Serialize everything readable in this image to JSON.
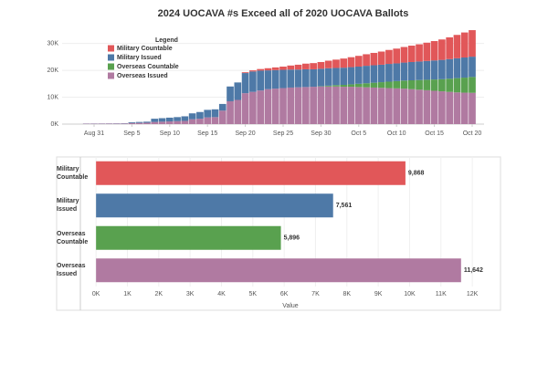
{
  "chart_data": [
    {
      "type": "bar",
      "stacked": true,
      "title": "2024 UOCAVA #s Exceed all of 2020 UOCAVA Ballots",
      "categories": [
        null,
        "Aug 31",
        null,
        null,
        null,
        null,
        "Sep 5",
        null,
        null,
        null,
        null,
        "Sep 10",
        null,
        null,
        null,
        null,
        "Sep 15",
        null,
        null,
        null,
        null,
        "Sep 20",
        null,
        null,
        null,
        null,
        "Sep 25",
        null,
        null,
        null,
        null,
        "Sep 30",
        null,
        null,
        null,
        null,
        "Oct 5",
        null,
        null,
        null,
        null,
        "Oct 10",
        null,
        null,
        null,
        null,
        "Oct 15",
        null,
        null,
        null,
        null,
        "Oct 20"
      ],
      "series": [
        {
          "name": "Military Countable",
          "color": "#e15759",
          "values": [
            0,
            0,
            0,
            0,
            0,
            0,
            0,
            0,
            0,
            0,
            0,
            0,
            0,
            0,
            0,
            0,
            0,
            0,
            0,
            0,
            0,
            300,
            400,
            600,
            800,
            1000,
            1200,
            1500,
            1800,
            2100,
            2300,
            2500,
            2800,
            3100,
            3400,
            3700,
            4000,
            4300,
            4600,
            4900,
            5200,
            5500,
            5800,
            6100,
            6400,
            6800,
            7200,
            7600,
            8100,
            8700,
            9300,
            9868
          ]
        },
        {
          "name": "Military Issued",
          "color": "#4e79a7",
          "values": [
            50,
            60,
            60,
            70,
            80,
            100,
            300,
            350,
            400,
            1200,
            1300,
            1400,
            1500,
            1700,
            2200,
            2500,
            2800,
            2900,
            2500,
            5500,
            6500,
            7500,
            7600,
            7400,
            7000,
            6900,
            6800,
            6700,
            6600,
            6600,
            6500,
            6500,
            6500,
            6400,
            6400,
            6400,
            6400,
            6500,
            6500,
            6500,
            6600,
            6600,
            6700,
            6800,
            6900,
            7000,
            7100,
            7200,
            7300,
            7400,
            7500,
            7561
          ]
        },
        {
          "name": "Overseas Countable",
          "color": "#59a14f",
          "values": [
            0,
            0,
            0,
            0,
            0,
            0,
            0,
            0,
            0,
            0,
            0,
            0,
            0,
            0,
            0,
            0,
            0,
            0,
            0,
            0,
            0,
            0,
            0,
            0,
            0,
            0,
            0,
            0,
            0,
            0,
            0,
            100,
            300,
            500,
            700,
            900,
            1200,
            1500,
            1800,
            2100,
            2400,
            2700,
            3000,
            3300,
            3600,
            3900,
            4200,
            4500,
            4900,
            5300,
            5600,
            5896
          ]
        },
        {
          "name": "Overseas Issued",
          "color": "#b07aa1",
          "values": [
            150,
            150,
            160,
            170,
            180,
            200,
            400,
            450,
            500,
            800,
            900,
            1000,
            1100,
            1200,
            1800,
            2000,
            2500,
            2600,
            5000,
            8500,
            9000,
            11500,
            12000,
            12500,
            13000,
            13200,
            13400,
            13600,
            13700,
            13800,
            13900,
            14000,
            14000,
            14000,
            13900,
            13900,
            13800,
            13700,
            13600,
            13500,
            13400,
            13300,
            13200,
            13000,
            12800,
            12600,
            12400,
            12200,
            12000,
            11800,
            11700,
            11642
          ]
        }
      ],
      "ylim": [
        0,
        36000
      ],
      "yticks": [
        {
          "value": 0,
          "label": "0K"
        },
        {
          "value": 10000,
          "label": "10K"
        },
        {
          "value": 20000,
          "label": "20K"
        },
        {
          "value": 30000,
          "label": "30K"
        }
      ],
      "grid": true,
      "legend_title": "Legend",
      "legend": "upper left"
    },
    {
      "type": "bar",
      "orientation": "horizontal",
      "categories": [
        "Military Countable",
        "Military Issued",
        "Overseas Countable",
        "Overseas Issued"
      ],
      "values": [
        9868,
        7561,
        5896,
        11642
      ],
      "value_labels": [
        "9,868",
        "7,561",
        "5,896",
        "11,642"
      ],
      "colors": [
        "#e15759",
        "#4e79a7",
        "#59a14f",
        "#b07aa1"
      ],
      "xlabel": "Value",
      "xlim": [
        -500,
        12900
      ],
      "xticks": [
        {
          "value": 0,
          "label": "0K"
        },
        {
          "value": 1000,
          "label": "1K"
        },
        {
          "value": 2000,
          "label": "2K"
        },
        {
          "value": 3000,
          "label": "3K"
        },
        {
          "value": 4000,
          "label": "4K"
        },
        {
          "value": 5000,
          "label": "5K"
        },
        {
          "value": 6000,
          "label": "6K"
        },
        {
          "value": 7000,
          "label": "7K"
        },
        {
          "value": 8000,
          "label": "8K"
        },
        {
          "value": 9000,
          "label": "9K"
        },
        {
          "value": 10000,
          "label": "10K"
        },
        {
          "value": 11000,
          "label": "11K"
        },
        {
          "value": 12000,
          "label": "12K"
        }
      ],
      "grid": true
    }
  ]
}
